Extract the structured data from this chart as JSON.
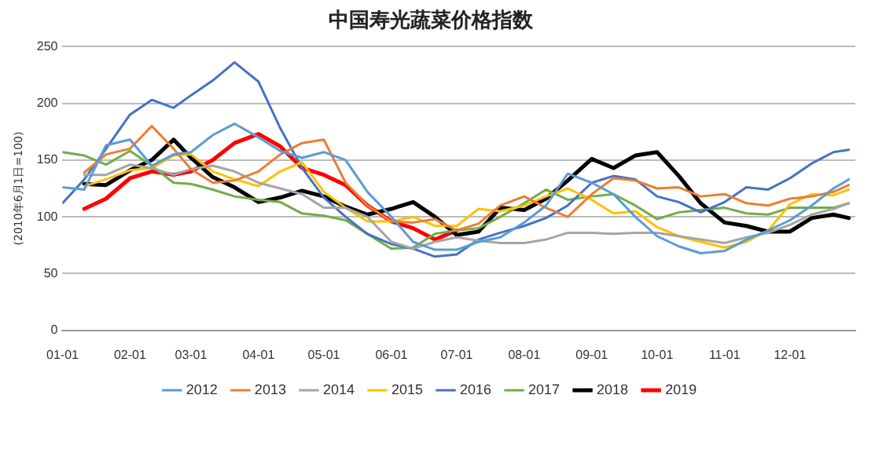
{
  "chart_data": {
    "type": "line",
    "title": "中国寿光蔬菜价格指数",
    "ylabel": "(2010年6月1日=100)",
    "x": [
      "--01-01",
      "--01-11",
      "--01-21",
      "--02-01",
      "--02-11",
      "--02-21",
      "--03-01",
      "--03-11",
      "--03-21",
      "--04-01",
      "--04-11",
      "--04-21",
      "--05-01",
      "--05-11",
      "--05-21",
      "--06-01",
      "--06-11",
      "--06-21",
      "--07-01",
      "--07-11",
      "--07-21",
      "--08-01",
      "--08-11",
      "--08-21",
      "--09-01",
      "--09-11",
      "--09-21",
      "--10-01",
      "--10-11",
      "--10-21",
      "--11-01",
      "--11-11",
      "--11-21",
      "--12-01",
      "--12-11",
      "--12-21",
      "--12-28"
    ],
    "xlim": [
      "--01-01",
      "--12-31"
    ],
    "xticks": [
      {
        "value": "--01-01",
        "label": "01-01"
      },
      {
        "value": "--02-01",
        "label": "02-01"
      },
      {
        "value": "--03-01",
        "label": "03-01"
      },
      {
        "value": "--04-01",
        "label": "04-01"
      },
      {
        "value": "--05-01",
        "label": "05-01"
      },
      {
        "value": "--06-01",
        "label": "06-01"
      },
      {
        "value": "--07-01",
        "label": "07-01"
      },
      {
        "value": "--08-01",
        "label": "08-01"
      },
      {
        "value": "--09-01",
        "label": "09-01"
      },
      {
        "value": "--10-01",
        "label": "10-01"
      },
      {
        "value": "--11-01",
        "label": "11-01"
      },
      {
        "value": "--12-01",
        "label": "12-01"
      }
    ],
    "ylim": [
      0,
      250
    ],
    "yticks": [
      0,
      50,
      100,
      150,
      200,
      250
    ],
    "grid": "y",
    "legend": "bottom",
    "marker": "none",
    "line_style": "solid",
    "series": [
      {
        "name": "2012",
        "color": "#5b9bd5",
        "values": [
          126,
          124,
          163,
          168,
          145,
          155,
          157,
          172,
          182,
          170,
          158,
          152,
          157,
          150,
          122,
          100,
          78,
          71,
          71,
          78,
          82,
          95,
          110,
          138,
          130,
          120,
          100,
          83,
          74,
          68,
          70,
          80,
          88,
          97,
          110,
          125,
          133
        ]
      },
      {
        "name": "2013",
        "color": "#ed7d31",
        "values": [
          null,
          139,
          155,
          160,
          180,
          160,
          142,
          130,
          132,
          140,
          155,
          165,
          168,
          130,
          110,
          96,
          95,
          98,
          88,
          94,
          110,
          118,
          108,
          100,
          120,
          134,
          132,
          125,
          126,
          118,
          120,
          112,
          110,
          116,
          118,
          122,
          128
        ]
      },
      {
        "name": "2014",
        "color": "#a5a5a5",
        "values": [
          null,
          137,
          137,
          146,
          143,
          137,
          142,
          145,
          140,
          130,
          125,
          120,
          108,
          108,
          100,
          78,
          72,
          78,
          82,
          79,
          77,
          77,
          80,
          86,
          86,
          85,
          86,
          86,
          83,
          80,
          77,
          82,
          86,
          93,
          102,
          107,
          112
        ]
      },
      {
        "name": "2015",
        "color": "#ffc000",
        "values": [
          null,
          127,
          133,
          141,
          143,
          154,
          155,
          140,
          133,
          127,
          140,
          148,
          122,
          108,
          96,
          96,
          100,
          92,
          92,
          107,
          105,
          110,
          118,
          125,
          115,
          103,
          105,
          91,
          83,
          78,
          73,
          78,
          88,
          111,
          120,
          119,
          124
        ]
      },
      {
        "name": "2016",
        "color": "#4472c4",
        "values": [
          112,
          133,
          160,
          190,
          203,
          196,
          207,
          220,
          236,
          219,
          178,
          143,
          117,
          100,
          85,
          76,
          72,
          65,
          67,
          80,
          86,
          92,
          99,
          110,
          130,
          136,
          133,
          118,
          113,
          104,
          113,
          126,
          124,
          134,
          147,
          157,
          159
        ]
      },
      {
        "name": "2017",
        "color": "#70ad47",
        "values": [
          157,
          154,
          146,
          158,
          145,
          130,
          129,
          124,
          118,
          115,
          113,
          103,
          101,
          97,
          85,
          72,
          73,
          85,
          88,
          90,
          100,
          112,
          124,
          115,
          118,
          120,
          110,
          98,
          104,
          106,
          108,
          103,
          102,
          108,
          108,
          108,
          112
        ]
      },
      {
        "name": "2018",
        "color": "#000000",
        "values": [
          null,
          129,
          128,
          141,
          150,
          168,
          152,
          135,
          126,
          113,
          117,
          123,
          118,
          109,
          102,
          107,
          113,
          100,
          84,
          87,
          108,
          106,
          116,
          132,
          151,
          143,
          154,
          157,
          136,
          112,
          95,
          92,
          87,
          87,
          99,
          102,
          99
        ]
      },
      {
        "name": "2019",
        "color": "#ff0000",
        "values": [
          null,
          107,
          116,
          134,
          140,
          137,
          140,
          150,
          165,
          173,
          162,
          143,
          137,
          128,
          110,
          96,
          90,
          80,
          88,
          null,
          null,
          null,
          null,
          null,
          null,
          null,
          null,
          null,
          null,
          null,
          null,
          null,
          null,
          null,
          null,
          null,
          null
        ]
      }
    ]
  }
}
